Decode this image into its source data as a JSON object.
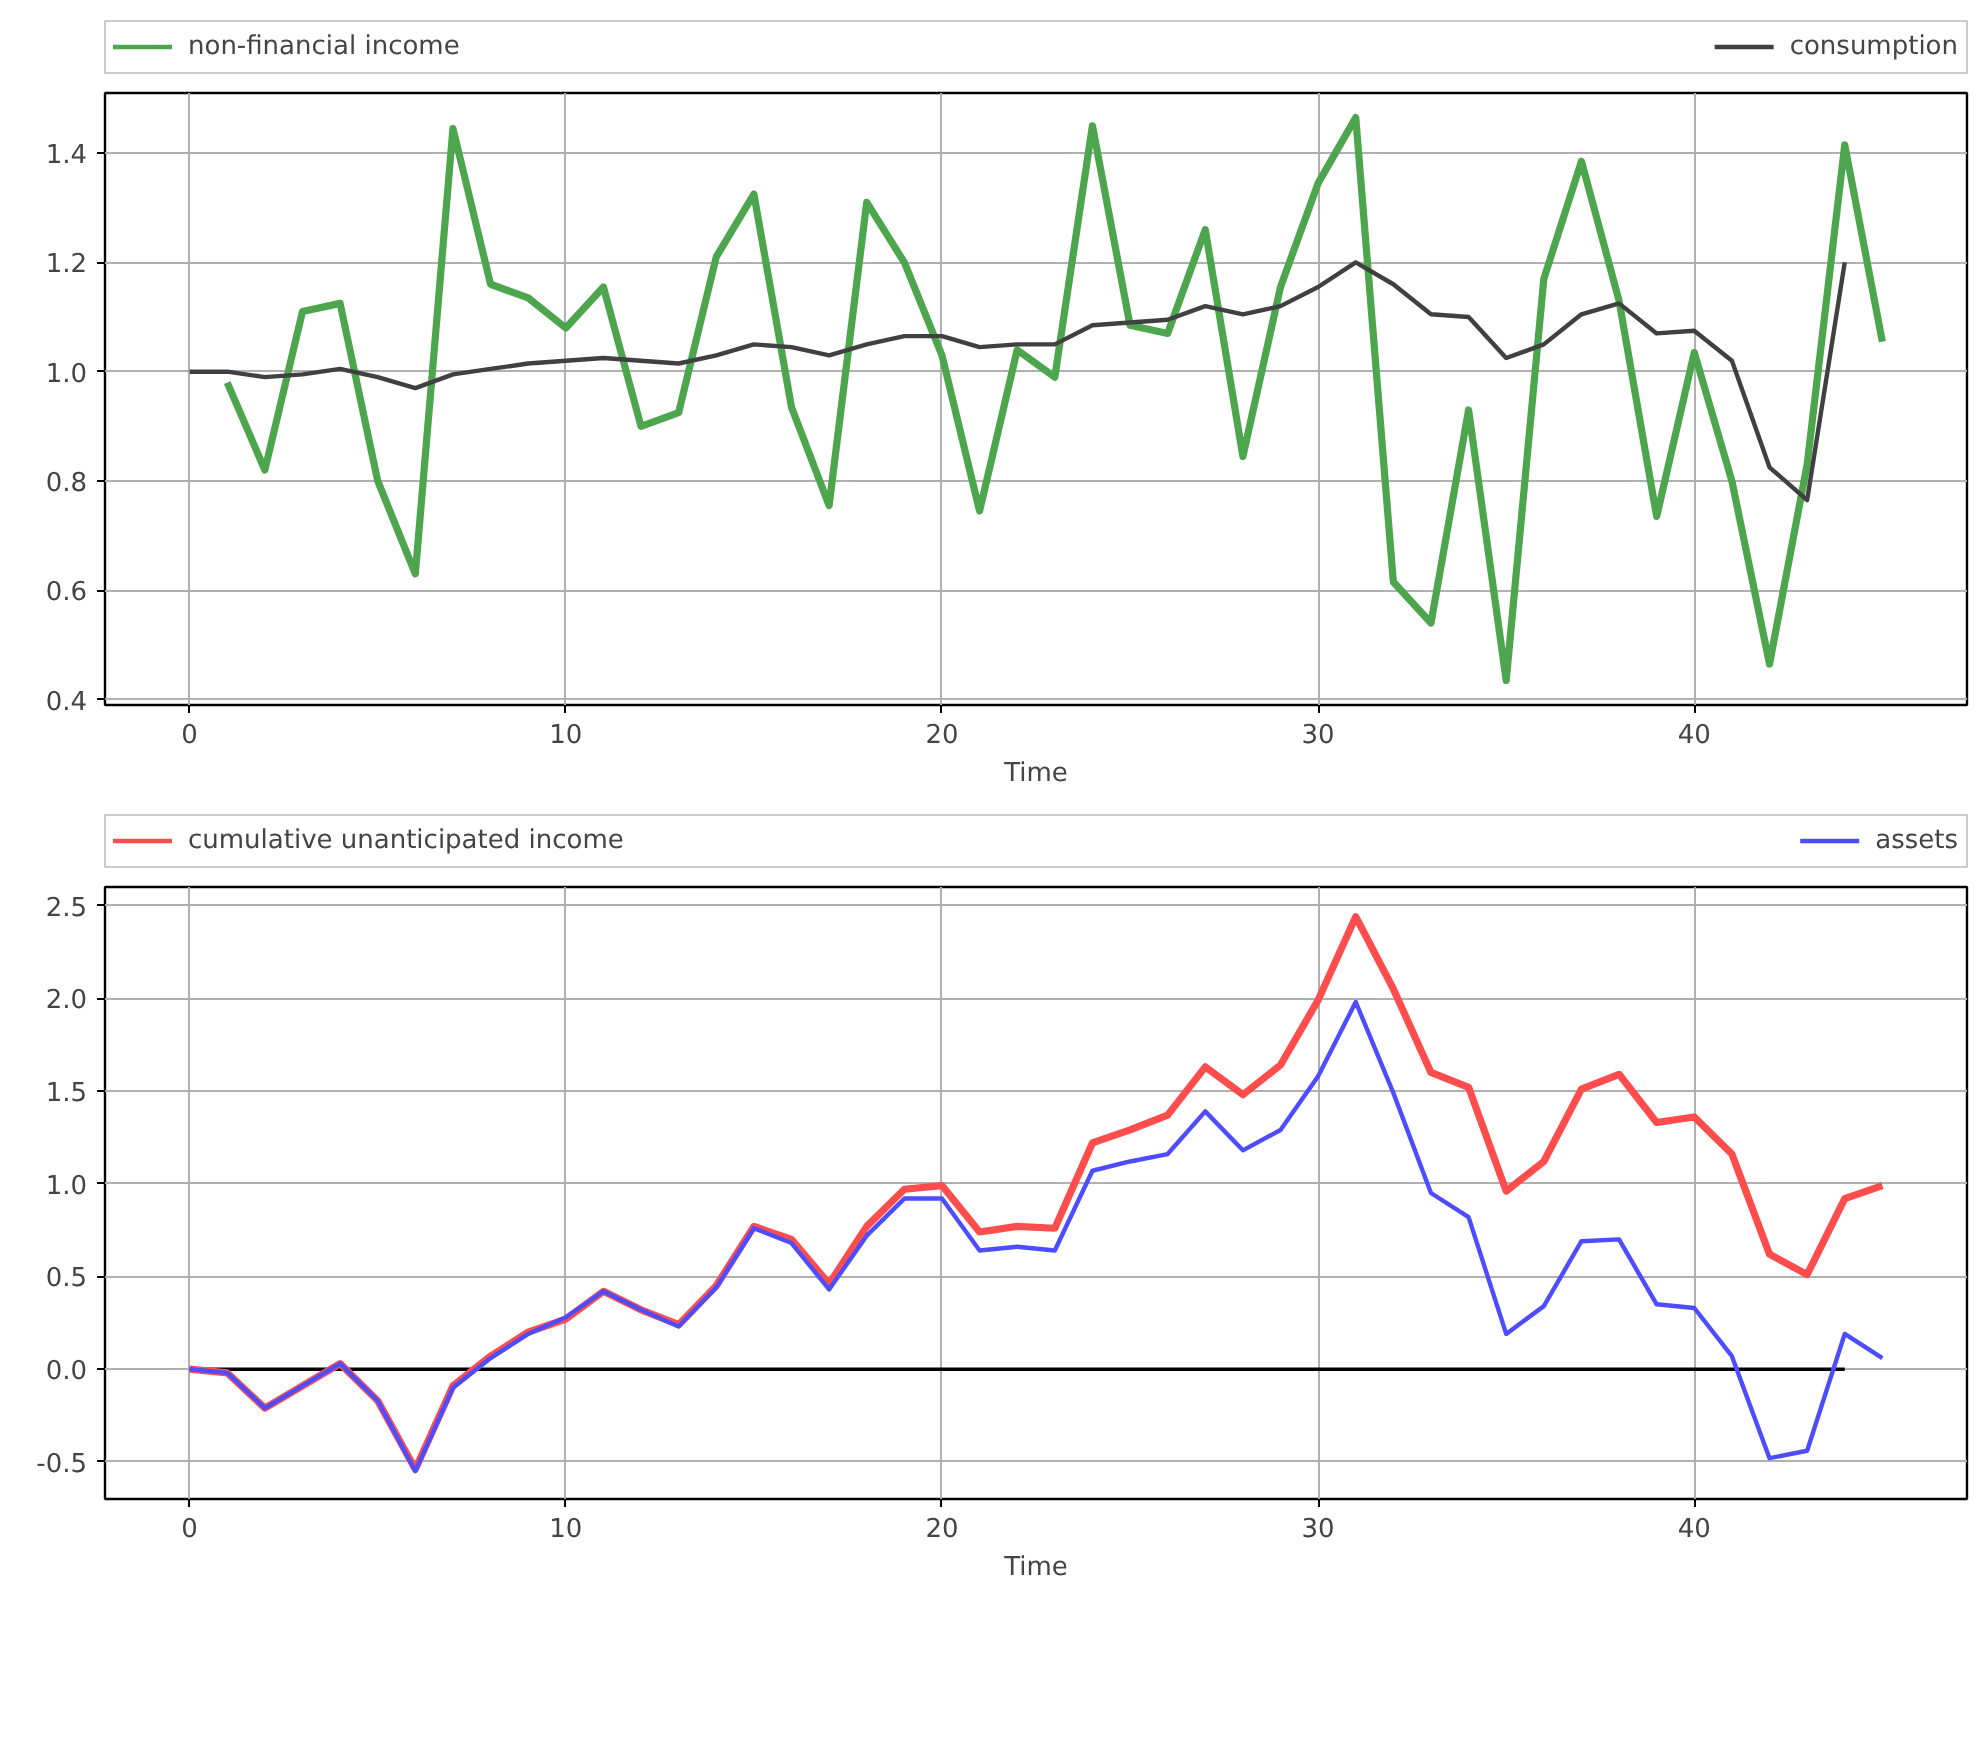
{
  "chart_data": [
    {
      "type": "line",
      "xlabel": "Time",
      "legend": "top",
      "grid": true,
      "xlim": [
        -2.25,
        47.25
      ],
      "ylim": [
        0.39,
        1.51
      ],
      "xticks": [
        0,
        10,
        20,
        30,
        40
      ],
      "yticks": [
        {
          "value": 0.4,
          "label": "0.4"
        },
        {
          "value": 0.6,
          "label": "0.6"
        },
        {
          "value": 0.8,
          "label": "0.8"
        },
        {
          "value": 1.0,
          "label": "1.0"
        },
        {
          "value": 1.2,
          "label": "1.2"
        },
        {
          "value": 1.4,
          "label": "1.4"
        }
      ],
      "series": [
        {
          "name": "non-financial income",
          "color": "#4da64d",
          "x": [
            1,
            2,
            3,
            4,
            5,
            6,
            7,
            8,
            9,
            10,
            11,
            12,
            13,
            14,
            15,
            16,
            17,
            18,
            19,
            20,
            21,
            22,
            23,
            24,
            25,
            26,
            27,
            28,
            29,
            30,
            31,
            32,
            33,
            34,
            35,
            36,
            37,
            38,
            39,
            40,
            41,
            42,
            43,
            44,
            45
          ],
          "values": [
            0.98,
            0.82,
            1.11,
            1.125,
            0.8,
            0.63,
            1.445,
            1.16,
            1.135,
            1.08,
            1.155,
            0.9,
            0.925,
            1.21,
            1.325,
            0.935,
            0.755,
            1.31,
            1.2,
            1.03,
            0.745,
            1.04,
            0.99,
            1.45,
            1.085,
            1.07,
            1.26,
            0.845,
            1.155,
            1.345,
            1.465,
            0.615,
            0.54,
            0.93,
            0.435,
            1.17,
            1.385,
            1.13,
            0.735,
            1.035,
            0.8,
            0.465,
            0.83,
            1.415,
            1.055
          ]
        },
        {
          "name": "consumption",
          "color": "#404040",
          "x": [
            0,
            1,
            2,
            3,
            4,
            5,
            6,
            7,
            8,
            9,
            10,
            11,
            12,
            13,
            14,
            15,
            16,
            17,
            18,
            19,
            20,
            21,
            22,
            23,
            24,
            25,
            26,
            27,
            28,
            29,
            30,
            31,
            32,
            33,
            34,
            35,
            36,
            37,
            38,
            39,
            40,
            41,
            42,
            43,
            44
          ],
          "values": [
            1.0,
            1.0,
            0.99,
            0.995,
            1.005,
            0.99,
            0.97,
            0.995,
            1.005,
            1.015,
            1.02,
            1.025,
            1.02,
            1.015,
            1.03,
            1.05,
            1.045,
            1.03,
            1.05,
            1.065,
            1.065,
            1.045,
            1.05,
            1.05,
            1.085,
            1.09,
            1.095,
            1.12,
            1.105,
            1.12,
            1.155,
            1.2,
            1.16,
            1.105,
            1.1,
            1.025,
            1.05,
            1.105,
            1.125,
            1.07,
            1.075,
            1.02,
            0.825,
            0.765,
            1.2
          ]
        }
      ]
    },
    {
      "type": "line",
      "xlabel": "Time",
      "legend": "top",
      "grid": true,
      "xlim": [
        -2.25,
        47.25
      ],
      "ylim": [
        -0.7,
        2.6
      ],
      "xticks": [
        0,
        10,
        20,
        30,
        40
      ],
      "yticks": [
        {
          "value": -0.5,
          "label": "-0.5"
        },
        {
          "value": 0,
          "label": "0.0"
        },
        {
          "value": 0.5,
          "label": "0.5"
        },
        {
          "value": 1.0,
          "label": "1.0"
        },
        {
          "value": 1.5,
          "label": "1.5"
        },
        {
          "value": 2.0,
          "label": "2.0"
        },
        {
          "value": 2.5,
          "label": "2.5"
        }
      ],
      "series": [
        {
          "color": "#000000",
          "x": [
            0,
            44
          ],
          "values": [
            0,
            0
          ]
        },
        {
          "name": "cumulative unanticipated income",
          "color": "#ff4d4d",
          "x": [
            0,
            1,
            2,
            3,
            4,
            5,
            6,
            7,
            8,
            9,
            10,
            11,
            12,
            13,
            14,
            15,
            16,
            17,
            18,
            19,
            20,
            21,
            22,
            23,
            24,
            25,
            26,
            27,
            28,
            29,
            30,
            31,
            32,
            33,
            34,
            35,
            36,
            37,
            38,
            39,
            40,
            41,
            42,
            43,
            44,
            45
          ],
          "values": [
            0,
            -0.02,
            -0.21,
            -0.09,
            0.03,
            -0.17,
            -0.54,
            -0.09,
            0.07,
            0.2,
            0.27,
            0.42,
            0.32,
            0.24,
            0.45,
            0.77,
            0.7,
            0.46,
            0.77,
            0.97,
            0.99,
            0.74,
            0.77,
            0.76,
            1.22,
            1.29,
            1.37,
            1.63,
            1.48,
            1.64,
            1.99,
            2.44,
            2.05,
            1.6,
            1.52,
            0.96,
            1.12,
            1.51,
            1.59,
            1.33,
            1.36,
            1.16,
            0.62,
            0.51,
            0.92,
            0.99
          ]
        },
        {
          "name": "assets",
          "color": "#4d4dff",
          "x": [
            0,
            1,
            2,
            3,
            4,
            5,
            6,
            7,
            8,
            9,
            10,
            11,
            12,
            13,
            14,
            15,
            16,
            17,
            18,
            19,
            20,
            21,
            22,
            23,
            24,
            25,
            26,
            27,
            28,
            29,
            30,
            31,
            32,
            33,
            34,
            35,
            36,
            37,
            38,
            39,
            40,
            41,
            42,
            43,
            44,
            45
          ],
          "values": [
            0,
            -0.02,
            -0.21,
            -0.09,
            0.03,
            -0.17,
            -0.55,
            -0.1,
            0.06,
            0.19,
            0.28,
            0.42,
            0.32,
            0.23,
            0.44,
            0.76,
            0.68,
            0.43,
            0.72,
            0.92,
            0.92,
            0.64,
            0.66,
            0.64,
            1.07,
            1.12,
            1.16,
            1.39,
            1.18,
            1.29,
            1.58,
            1.98,
            1.49,
            0.95,
            0.82,
            0.19,
            0.34,
            0.69,
            0.7,
            0.35,
            0.33,
            0.07,
            -0.48,
            -0.44,
            0.19,
            0.06
          ]
        }
      ]
    }
  ]
}
